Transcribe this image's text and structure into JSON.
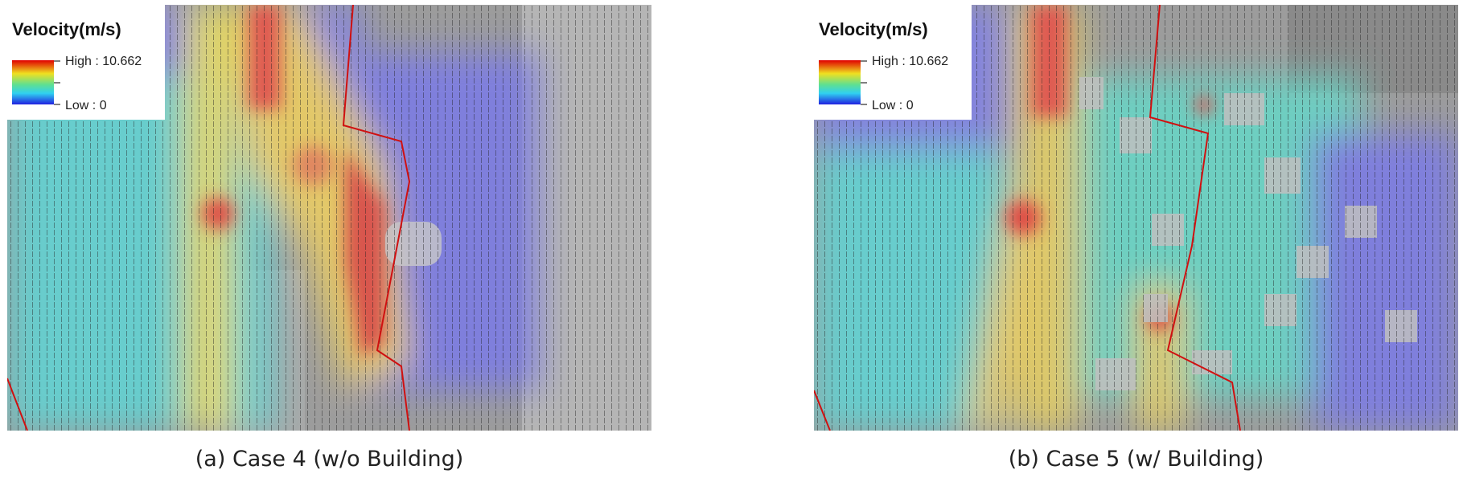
{
  "panels": [
    {
      "legend": {
        "title": "Velocity(m/s)",
        "high": "High : 10.662",
        "low": "Low : 0"
      },
      "caption": "(a) Case 4 (w/o Building)"
    },
    {
      "legend": {
        "title": "Velocity(m/s)",
        "high": "High : 10.662",
        "low": "Low : 0"
      },
      "caption": "(b) Case 5 (w/ Building)"
    }
  ]
}
